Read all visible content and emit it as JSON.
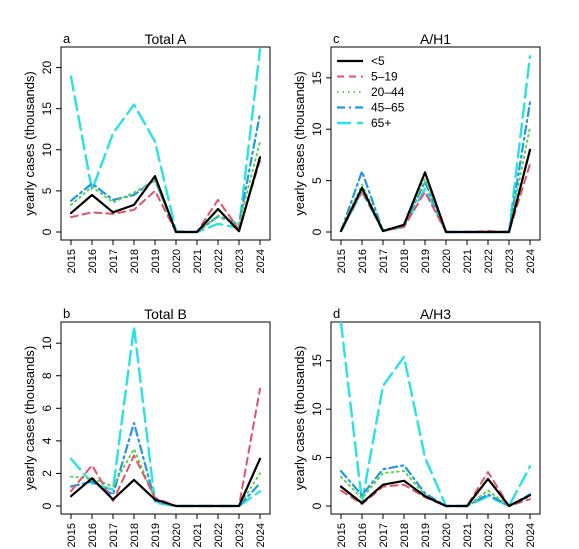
{
  "style": {
    "series": [
      {
        "name": "<5",
        "color": "#000000",
        "dash": "",
        "width": 2.2
      },
      {
        "name": "5–19",
        "color": "#DF536B",
        "dash": "7,5",
        "width": 2.0
      },
      {
        "name": "20–44",
        "color": "#61D04F",
        "dash": "1.5,4",
        "width": 2.0
      },
      {
        "name": "45–65",
        "color": "#2297E6",
        "dash": "8,4,2,4",
        "width": 2.2
      },
      {
        "name": "65+",
        "color": "#28E2E5",
        "dash": "14,6",
        "width": 2.4
      }
    ]
  },
  "chart_data": [
    {
      "type": "line",
      "panel": "a",
      "title": "Total A",
      "ylabel": "yearly cases (thousands)",
      "x": [
        "2015",
        "2016",
        "2017",
        "2018",
        "2019",
        "2020",
        "2021",
        "2022",
        "2023",
        "2024"
      ],
      "ylim": [
        0,
        22.5
      ],
      "yticks": [
        0,
        5,
        10,
        15,
        20
      ],
      "legend": false,
      "series": [
        {
          "name": "<5",
          "values": [
            2.3,
            4.5,
            2.4,
            3.3,
            6.8,
            0.0,
            0.0,
            2.8,
            0.1,
            9.1
          ]
        },
        {
          "name": "5–19",
          "values": [
            1.8,
            2.4,
            2.2,
            2.7,
            5.0,
            0.0,
            0.0,
            3.9,
            0.3,
            8.7
          ]
        },
        {
          "name": "20–44",
          "values": [
            3.3,
            5.5,
            3.6,
            4.8,
            6.2,
            0.0,
            0.0,
            2.0,
            1.0,
            11.0
          ]
        },
        {
          "name": "45–65",
          "values": [
            3.8,
            5.9,
            3.9,
            4.5,
            6.4,
            0.0,
            0.0,
            1.9,
            0.9,
            14.4
          ]
        },
        {
          "name": "65+",
          "values": [
            18.9,
            5.1,
            12.0,
            15.5,
            11.0,
            0.1,
            0.0,
            1.0,
            0.5,
            22.2
          ]
        }
      ]
    },
    {
      "type": "line",
      "panel": "c",
      "title": "A/H1",
      "ylabel": "yearly cases (thousands)",
      "x": [
        "2015",
        "2016",
        "2017",
        "2018",
        "2019",
        "2020",
        "2021",
        "2022",
        "2023",
        "2024"
      ],
      "ylim": [
        0,
        18
      ],
      "yticks": [
        0,
        5,
        10,
        15
      ],
      "legend": true,
      "legend_position": "top-left",
      "series": [
        {
          "name": "<5",
          "values": [
            0.1,
            4.3,
            0.1,
            0.7,
            5.8,
            0.0,
            0.0,
            0.0,
            0.0,
            8.0
          ]
        },
        {
          "name": "5–19",
          "values": [
            0.1,
            4.0,
            0.1,
            0.5,
            3.9,
            0.0,
            0.0,
            0.1,
            0.0,
            6.6
          ]
        },
        {
          "name": "20–44",
          "values": [
            0.2,
            4.6,
            0.2,
            0.6,
            5.2,
            0.0,
            0.0,
            0.0,
            0.0,
            10.2
          ]
        },
        {
          "name": "45–65",
          "values": [
            0.1,
            5.9,
            0.1,
            0.6,
            4.9,
            0.0,
            0.0,
            0.0,
            0.0,
            12.6
          ]
        },
        {
          "name": "65+",
          "values": [
            0.1,
            3.9,
            0.1,
            0.5,
            4.2,
            0.0,
            0.0,
            0.0,
            0.0,
            17.1
          ]
        }
      ]
    },
    {
      "type": "line",
      "panel": "b",
      "title": "Total B",
      "ylabel": "yearly cases (thousands)",
      "x": [
        "2015",
        "2016",
        "2017",
        "2018",
        "2019",
        "2020",
        "2021",
        "2022",
        "2023",
        "2024"
      ],
      "ylim": [
        0,
        11.3
      ],
      "yticks": [
        0,
        2,
        4,
        6,
        8,
        10
      ],
      "legend": false,
      "series": [
        {
          "name": "<5",
          "values": [
            0.6,
            1.7,
            0.4,
            1.6,
            0.4,
            0.0,
            0.0,
            0.0,
            0.0,
            2.9
          ]
        },
        {
          "name": "5–19",
          "values": [
            0.9,
            2.5,
            0.3,
            3.1,
            0.5,
            0.0,
            0.0,
            0.0,
            0.0,
            7.2
          ]
        },
        {
          "name": "20–44",
          "values": [
            1.8,
            1.7,
            1.2,
            3.5,
            0.4,
            0.0,
            0.0,
            0.0,
            0.0,
            2.0
          ]
        },
        {
          "name": "45–65",
          "values": [
            1.2,
            1.5,
            0.7,
            5.1,
            0.3,
            0.0,
            0.0,
            0.0,
            0.0,
            1.4
          ]
        },
        {
          "name": "65+",
          "values": [
            2.9,
            1.4,
            1.0,
            11.0,
            0.2,
            0.0,
            0.0,
            0.0,
            0.0,
            0.9
          ]
        }
      ]
    },
    {
      "type": "line",
      "panel": "d",
      "title": "A/H3",
      "ylabel": "yearly cases (thousands)",
      "x": [
        "2015",
        "2016",
        "2017",
        "2018",
        "2019",
        "2020",
        "2021",
        "2022",
        "2023",
        "2024"
      ],
      "ylim": [
        0,
        19
      ],
      "yticks": [
        0,
        5,
        10,
        15
      ],
      "legend": false,
      "series": [
        {
          "name": "<5",
          "values": [
            2.0,
            0.3,
            2.2,
            2.6,
            1.0,
            0.0,
            0.0,
            2.8,
            0.0,
            1.1
          ]
        },
        {
          "name": "5–19",
          "values": [
            1.6,
            0.2,
            2.0,
            2.2,
            0.9,
            0.0,
            0.0,
            3.5,
            0.0,
            0.7
          ]
        },
        {
          "name": "20–44",
          "values": [
            3.0,
            0.8,
            3.4,
            3.6,
            1.1,
            0.0,
            0.0,
            1.6,
            0.0,
            1.0
          ]
        },
        {
          "name": "45–65",
          "values": [
            3.6,
            1.1,
            3.8,
            4.2,
            1.3,
            0.0,
            0.0,
            1.2,
            0.0,
            1.2
          ]
        },
        {
          "name": "65+",
          "values": [
            18.9,
            0.4,
            12.4,
            15.4,
            5.0,
            0.0,
            0.0,
            1.0,
            0.0,
            4.1
          ]
        }
      ]
    }
  ]
}
